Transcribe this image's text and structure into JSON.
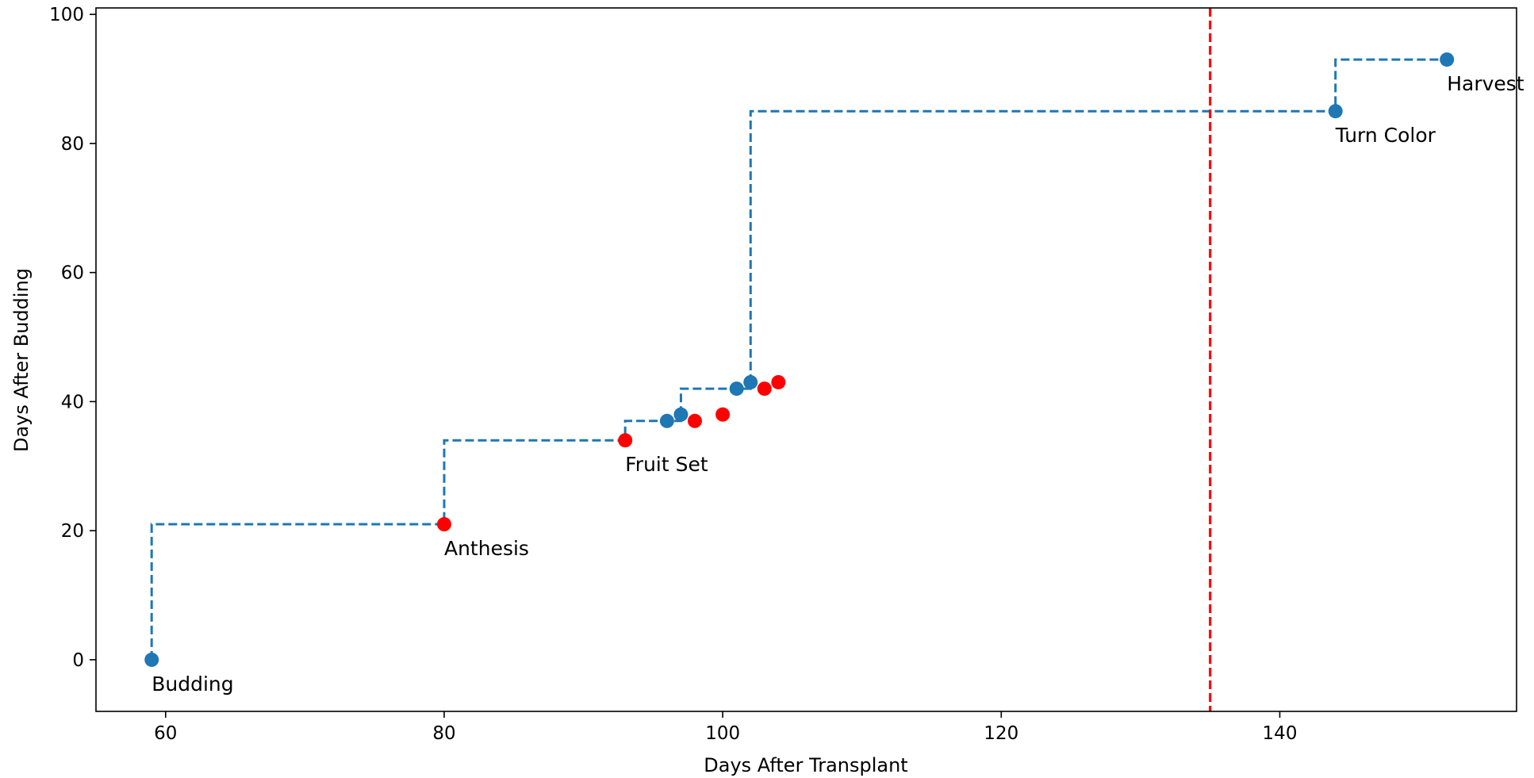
{
  "chart_data": {
    "type": "scatter",
    "title": "",
    "xlabel": "Days After Transplant",
    "ylabel": "Days After Budding",
    "xlim": [
      55,
      157
    ],
    "ylim": [
      -8,
      101
    ],
    "xticks": [
      60,
      80,
      100,
      120,
      140
    ],
    "yticks": [
      0,
      20,
      40,
      60,
      80,
      100
    ],
    "grid": false,
    "colors": {
      "blue": "#1f77b4",
      "red": "#ff0000"
    },
    "series": [
      {
        "points": [
          {
            "x": 59,
            "y": 0,
            "color": "blue",
            "label": "Budding"
          },
          {
            "x": 80,
            "y": 21,
            "color": "red",
            "label": "Anthesis"
          },
          {
            "x": 93,
            "y": 34,
            "color": "red",
            "label": "Fruit Set"
          },
          {
            "x": 96,
            "y": 37,
            "color": "blue",
            "label": ""
          },
          {
            "x": 97,
            "y": 38,
            "color": "blue",
            "label": ""
          },
          {
            "x": 98,
            "y": 37,
            "color": "red",
            "label": ""
          },
          {
            "x": 100,
            "y": 38,
            "color": "red",
            "label": ""
          },
          {
            "x": 101,
            "y": 42,
            "color": "blue",
            "label": ""
          },
          {
            "x": 102,
            "y": 43,
            "color": "blue",
            "label": ""
          },
          {
            "x": 103,
            "y": 42,
            "color": "red",
            "label": ""
          },
          {
            "x": 104,
            "y": 43,
            "color": "red",
            "label": ""
          },
          {
            "x": 144,
            "y": 85,
            "color": "blue",
            "label": "Turn Color"
          },
          {
            "x": 152,
            "y": 93,
            "color": "blue",
            "label": "Harvest"
          }
        ]
      }
    ],
    "step_line": {
      "style": "dashed",
      "color": "blue",
      "points": [
        [
          59,
          0
        ],
        [
          59,
          21
        ],
        [
          80,
          21
        ],
        [
          80,
          34
        ],
        [
          93,
          34
        ],
        [
          93,
          37
        ],
        [
          97,
          37
        ],
        [
          97,
          42
        ],
        [
          102,
          42
        ],
        [
          102,
          85
        ],
        [
          144,
          85
        ],
        [
          144,
          93
        ],
        [
          152,
          93
        ]
      ]
    },
    "vline": {
      "x": 135,
      "style": "dashed",
      "color": "red"
    }
  }
}
